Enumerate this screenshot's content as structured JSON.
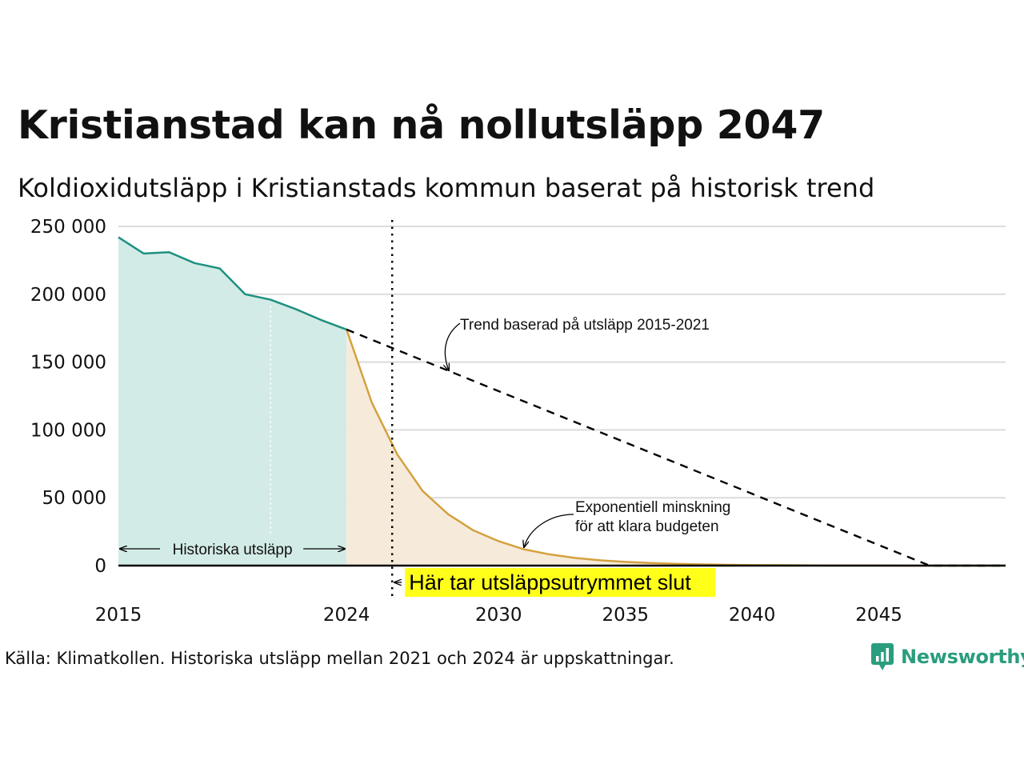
{
  "title": "Kristianstad kan nå nollutsläpp 2047",
  "subtitle": "Koldioxidutsläpp i Kristianstads kommun baserat på historisk trend",
  "source": "Källa: Klimatkollen. Historiska utsläpp mellan 2021 och 2024 är uppskattningar.",
  "logo_text": "Newsworthy",
  "colors": {
    "historical": "#1e9080",
    "historical_fill": "#d2ebe6",
    "projection": "#d4a13e",
    "projection_fill": "#f6ebdb",
    "highlight": "#ffff1a",
    "logo": "#2a9d7e"
  },
  "annotations": {
    "trend": "Trend baserad på utsläpp 2015-2021",
    "exp_line1": "Exponentiell minskning",
    "exp_line2": "för att klara budgeten",
    "historical": "Historiska utsläpp",
    "budget_end": "Här tar utsläppsutrymmet slut"
  },
  "chart_data": {
    "type": "area",
    "title": "Kristianstad kan nå nollutsläpp 2047",
    "subtitle": "Koldioxidutsläpp i Kristianstads kommun baserat på historisk trend",
    "xlabel": "",
    "ylabel": "",
    "xlim": [
      2015,
      2050
    ],
    "ylim": [
      0,
      250000
    ],
    "x_ticks": [
      2015,
      2024,
      2030,
      2035,
      2040,
      2045
    ],
    "y_ticks": [
      0,
      50000,
      100000,
      150000,
      200000,
      250000
    ],
    "y_tick_labels": [
      "0",
      "50 000",
      "100 000",
      "150 000",
      "200 000",
      "250 000"
    ],
    "grid": true,
    "budget_end_year": 2025.8,
    "historical_marker_year": 2021,
    "series": [
      {
        "name": "Historiska utsläpp",
        "style": "solid-area",
        "x": [
          2015,
          2016,
          2017,
          2018,
          2019,
          2020,
          2021,
          2022,
          2023,
          2024
        ],
        "values": [
          242000,
          230000,
          231000,
          223000,
          219000,
          200000,
          196000,
          189000,
          181000,
          174000
        ]
      },
      {
        "name": "Exponentiell minskning",
        "style": "solid-area",
        "x": [
          2024,
          2025,
          2026,
          2027,
          2028,
          2029,
          2030,
          2031,
          2032,
          2033,
          2034,
          2035,
          2036,
          2037,
          2038,
          2039,
          2040,
          2041,
          2042,
          2043,
          2044,
          2045,
          2046,
          2047,
          2048,
          2049,
          2050
        ],
        "values": [
          174000,
          120000,
          82000,
          55000,
          38000,
          26000,
          18000,
          12000,
          8300,
          5700,
          3900,
          2700,
          1900,
          1300,
          900,
          600,
          400,
          300,
          200,
          100,
          80,
          50,
          30,
          20,
          10,
          5,
          0
        ]
      },
      {
        "name": "Trend baserad på utsläpp 2015-2021",
        "style": "dashed",
        "x": [
          2024,
          2047,
          2050
        ],
        "values": [
          174000,
          0,
          0
        ]
      }
    ]
  }
}
